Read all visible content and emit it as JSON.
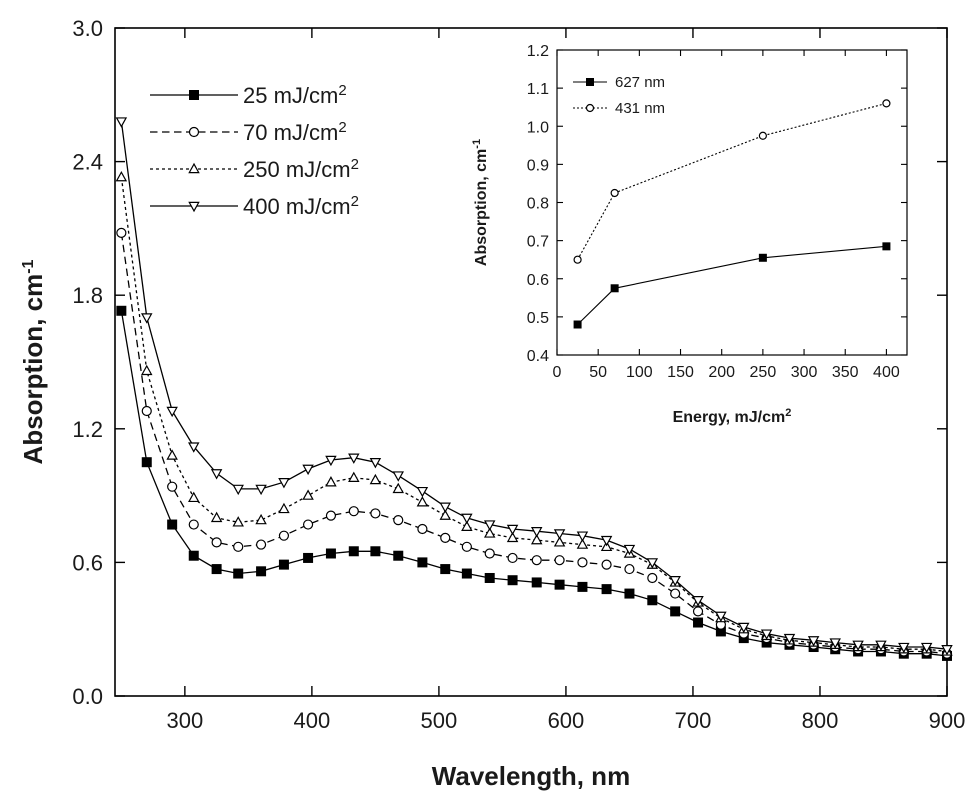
{
  "chart_data": [
    {
      "type": "line",
      "xlabel": "Wavelength, nm",
      "ylabel": "Absorption, cm",
      "ylabel_sup": "-1",
      "xlim": [
        245,
        900
      ],
      "ylim": [
        0.0,
        3.0
      ],
      "xticks": [
        "300",
        "400",
        "500",
        "600",
        "700",
        "800",
        "900"
      ],
      "yticks": [
        "0.0",
        "0.6",
        "1.2",
        "1.8",
        "2.4",
        "3.0"
      ],
      "grid": false,
      "legend_position": "top-left",
      "series": [
        {
          "name": "25 mJ/cm",
          "name_sup": "2",
          "marker": "filled-square",
          "line_style": "solid",
          "x": [
            250,
            270,
            290,
            307,
            325,
            342,
            360,
            378,
            397,
            415,
            433,
            450,
            468,
            487,
            505,
            522,
            540,
            558,
            577,
            595,
            613,
            632,
            650,
            668,
            686,
            704,
            722,
            740,
            758,
            776,
            795,
            812,
            830,
            848,
            866,
            884,
            900
          ],
          "y": [
            1.73,
            1.05,
            0.77,
            0.63,
            0.57,
            0.55,
            0.56,
            0.59,
            0.62,
            0.64,
            0.65,
            0.65,
            0.63,
            0.6,
            0.57,
            0.55,
            0.53,
            0.52,
            0.51,
            0.5,
            0.49,
            0.48,
            0.46,
            0.43,
            0.38,
            0.33,
            0.29,
            0.26,
            0.24,
            0.23,
            0.22,
            0.21,
            0.2,
            0.2,
            0.19,
            0.19,
            0.18
          ]
        },
        {
          "name": "70 mJ/cm",
          "name_sup": "2",
          "marker": "open-circle",
          "line_style": "dashed",
          "x": [
            250,
            270,
            290,
            307,
            325,
            342,
            360,
            378,
            397,
            415,
            433,
            450,
            468,
            487,
            505,
            522,
            540,
            558,
            577,
            595,
            613,
            632,
            650,
            668,
            686,
            704,
            722,
            740,
            758,
            776,
            795,
            812,
            830,
            848,
            866,
            884,
            900
          ],
          "y": [
            2.08,
            1.28,
            0.94,
            0.77,
            0.69,
            0.67,
            0.68,
            0.72,
            0.77,
            0.81,
            0.83,
            0.82,
            0.79,
            0.75,
            0.71,
            0.67,
            0.64,
            0.62,
            0.61,
            0.61,
            0.6,
            0.59,
            0.57,
            0.53,
            0.46,
            0.38,
            0.32,
            0.28,
            0.26,
            0.24,
            0.23,
            0.22,
            0.21,
            0.21,
            0.2,
            0.2,
            0.19
          ]
        },
        {
          "name": "250 mJ/cm",
          "name_sup": "2",
          "marker": "open-triangle-up",
          "line_style": "dotted",
          "x": [
            250,
            270,
            290,
            307,
            325,
            342,
            360,
            378,
            397,
            415,
            433,
            450,
            468,
            487,
            505,
            522,
            540,
            558,
            577,
            595,
            613,
            632,
            650,
            668,
            686,
            704,
            722,
            740,
            758,
            776,
            795,
            812,
            830,
            848,
            866,
            884,
            900
          ],
          "y": [
            2.33,
            1.46,
            1.08,
            0.89,
            0.8,
            0.78,
            0.79,
            0.84,
            0.9,
            0.96,
            0.98,
            0.97,
            0.93,
            0.87,
            0.81,
            0.76,
            0.73,
            0.71,
            0.7,
            0.69,
            0.68,
            0.67,
            0.64,
            0.59,
            0.51,
            0.42,
            0.35,
            0.3,
            0.27,
            0.25,
            0.24,
            0.23,
            0.22,
            0.22,
            0.21,
            0.21,
            0.2
          ]
        },
        {
          "name": "400 mJ/cm",
          "name_sup": "2",
          "marker": "open-triangle-down",
          "line_style": "solid",
          "x": [
            250,
            270,
            290,
            307,
            325,
            342,
            360,
            378,
            397,
            415,
            433,
            450,
            468,
            487,
            505,
            522,
            540,
            558,
            577,
            595,
            613,
            632,
            650,
            668,
            686,
            704,
            722,
            740,
            758,
            776,
            795,
            812,
            830,
            848,
            866,
            884,
            900
          ],
          "y": [
            2.58,
            1.7,
            1.28,
            1.12,
            1.0,
            0.93,
            0.93,
            0.96,
            1.02,
            1.06,
            1.07,
            1.05,
            0.99,
            0.92,
            0.85,
            0.8,
            0.77,
            0.75,
            0.74,
            0.73,
            0.72,
            0.7,
            0.66,
            0.6,
            0.52,
            0.43,
            0.36,
            0.31,
            0.28,
            0.26,
            0.25,
            0.24,
            0.23,
            0.23,
            0.22,
            0.22,
            0.21
          ]
        }
      ]
    },
    {
      "type": "line",
      "xlabel": "Energy, mJ/cm",
      "xlabel_sup": "2",
      "ylabel": "Absorption, cm",
      "ylabel_sup": "-1",
      "xlim": [
        0,
        425
      ],
      "ylim": [
        0.4,
        1.2
      ],
      "xticks": [
        "0",
        "50",
        "100",
        "150",
        "200",
        "250",
        "300",
        "350",
        "400"
      ],
      "yticks": [
        "0.4",
        "0.5",
        "0.6",
        "0.7",
        "0.8",
        "0.9",
        "1.0",
        "1.1",
        "1.2"
      ],
      "grid": false,
      "legend_position": "top-left",
      "series": [
        {
          "name": "627 nm",
          "marker": "filled-square",
          "line_style": "solid",
          "x": [
            25,
            70,
            250,
            400
          ],
          "y": [
            0.48,
            0.575,
            0.655,
            0.685
          ]
        },
        {
          "name": "431 nm",
          "marker": "open-circle",
          "line_style": "dotted",
          "x": [
            25,
            70,
            250,
            400
          ],
          "y": [
            0.65,
            0.825,
            0.975,
            1.06
          ]
        }
      ]
    }
  ]
}
